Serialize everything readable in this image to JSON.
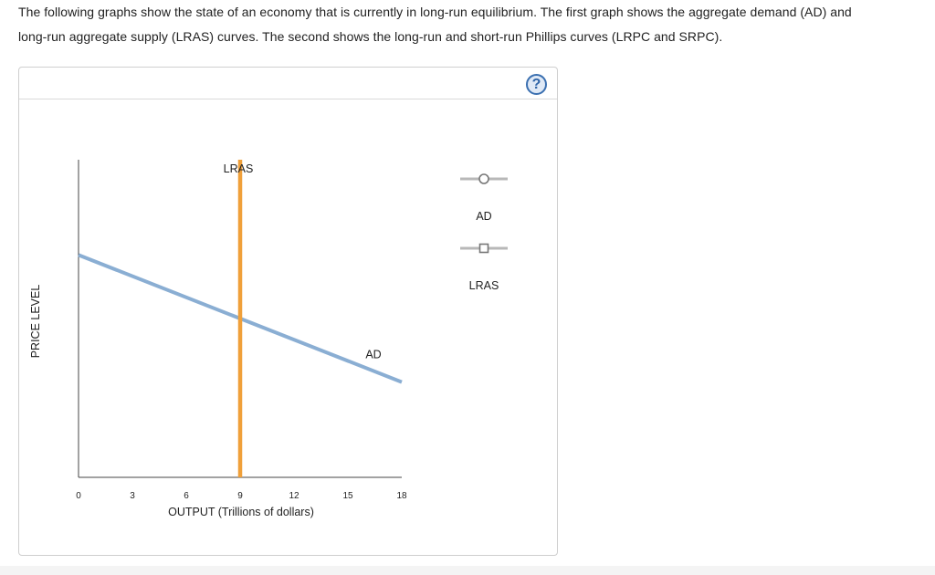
{
  "intro": {
    "line1": "The following graphs show the state of an economy that is currently in long-run equilibrium. The first graph shows the aggregate demand (AD) and",
    "line2": "long-run aggregate supply (LRAS) curves. The second shows the long-run and short-run Phillips curves (LRPC and SRPC)."
  },
  "toolbar": {
    "help_symbol": "?"
  },
  "chart_data": {
    "type": "line",
    "xlabel": "OUTPUT (Trillions of dollars)",
    "ylabel": "PRICE LEVEL",
    "x_ticks": [
      0,
      3,
      6,
      9,
      12,
      15,
      18
    ],
    "xlim": [
      0,
      18
    ],
    "ylim": [
      0,
      10
    ],
    "grid": false,
    "legend_position": "right",
    "series": [
      {
        "name": "AD",
        "color": "#8aaed3",
        "marker": "circle",
        "points": [
          [
            0,
            7.0
          ],
          [
            18,
            3.0
          ]
        ]
      },
      {
        "name": "LRAS",
        "color": "#f0a03a",
        "marker": "square",
        "points": [
          [
            9,
            0
          ],
          [
            9,
            10
          ]
        ]
      }
    ],
    "curve_labels": [
      {
        "text": "LRAS",
        "series": "LRAS"
      },
      {
        "text": "AD",
        "series": "AD"
      }
    ]
  }
}
